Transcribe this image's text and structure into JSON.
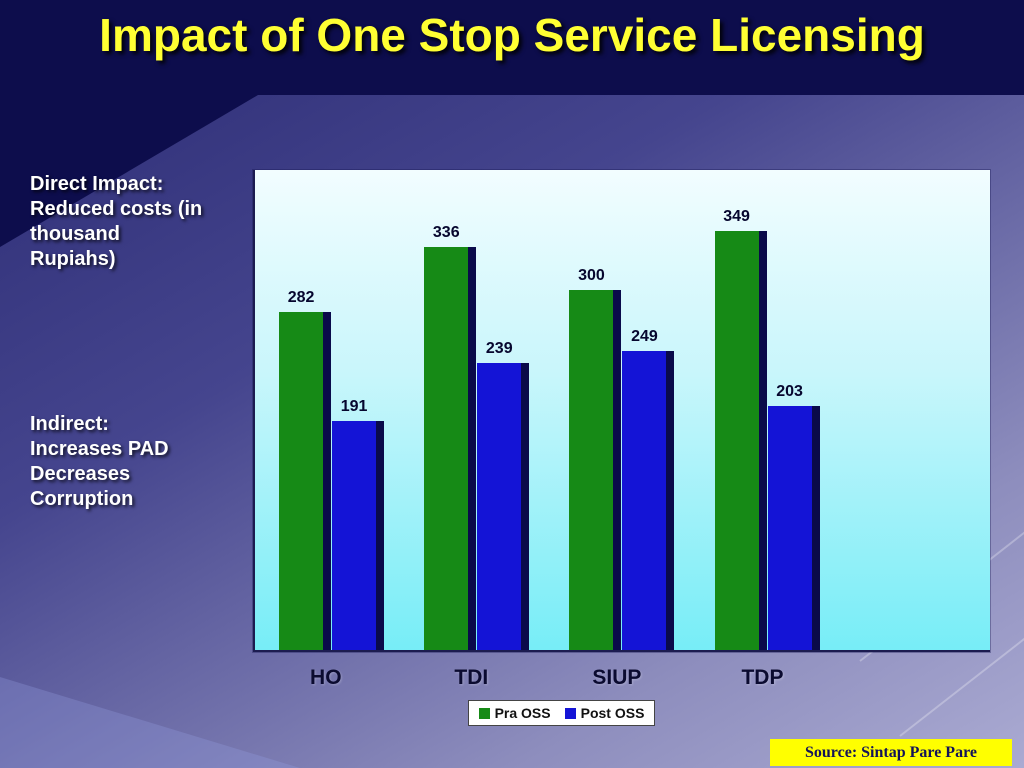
{
  "title": "Impact of One Stop Service Licensing",
  "notes": {
    "direct": "Direct Impact:\nReduced costs (in\nthousand\nRupiahs)",
    "indirect": "Indirect:\nIncreases PAD\nDecreases\nCorruption"
  },
  "source": {
    "label": "Source: Sintap Pare Pare"
  },
  "colors": {
    "title_yellow": "#ffff33",
    "source_bg": "#ffff00",
    "slide_dark": "#0d0d4c",
    "bar_shadow": "#0a0a4a"
  },
  "chart_data": {
    "type": "bar",
    "categories": [
      "HO",
      "TDI",
      "SIUP",
      "TDP"
    ],
    "series": [
      {
        "name": "Pra OSS",
        "color": "#168a16",
        "values": [
          282,
          336,
          300,
          349
        ]
      },
      {
        "name": "Post OSS",
        "color": "#1414d6",
        "values": [
          191,
          239,
          249,
          203
        ]
      }
    ],
    "title": "",
    "xlabel": "",
    "ylabel": "",
    "ylim": [
      0,
      400
    ],
    "grid": false,
    "legend_position": "bottom",
    "plot_bg": "cyan-gradient"
  }
}
